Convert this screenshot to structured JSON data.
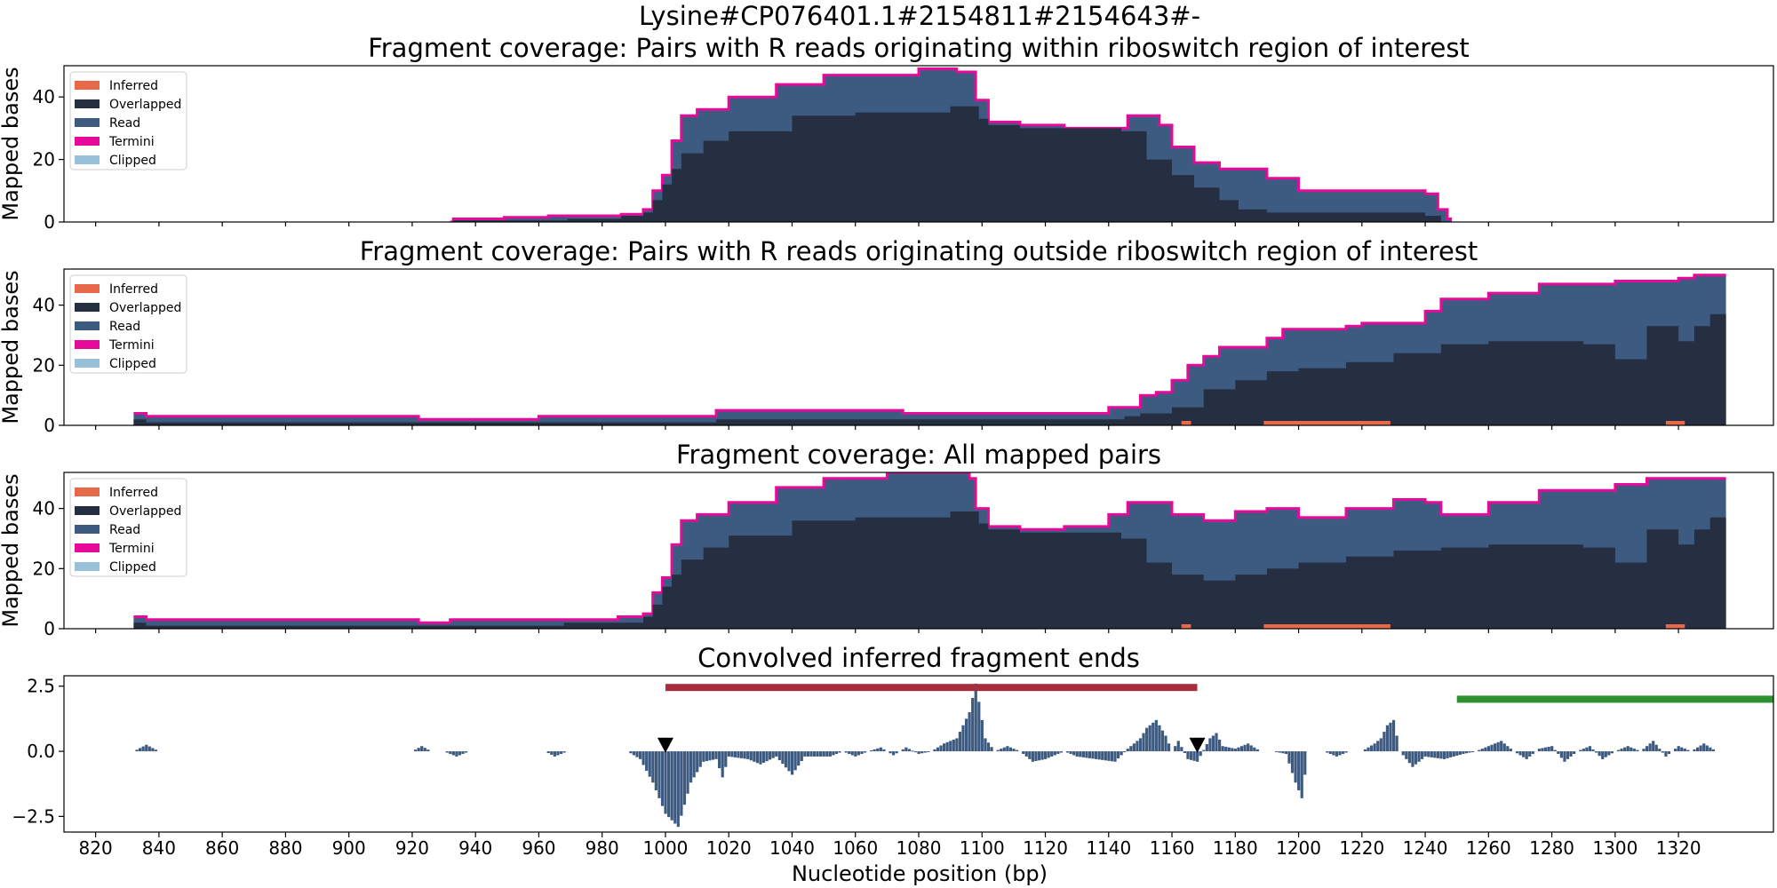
{
  "figure": {
    "suptitle": "Lysine#CP076401.1#2154811#2154643#-",
    "xlabel": "Nucleotide position (bp)"
  },
  "legend": [
    {
      "label": "Inferred",
      "color": "#e8694a"
    },
    {
      "label": "Overlapped",
      "color": "#252f41"
    },
    {
      "label": "Read",
      "color": "#3d5a80"
    },
    {
      "label": "Termini",
      "color": "#e6099a"
    },
    {
      "label": "Clipped",
      "color": "#98c1d9"
    }
  ],
  "colors": {
    "inferred": "#e8694a",
    "overlapped": "#252f41",
    "read": "#3d5a80",
    "termini": "#e6099a",
    "clipped": "#98c1d9",
    "red_bar": "#a72e3d",
    "green_bar": "#2f912f",
    "marker": "#000000"
  },
  "chart_data": [
    {
      "type": "area",
      "title": "Fragment coverage: Pairs with R reads originating within riboswitch region of interest",
      "ylabel": "Mapped bases",
      "xlim": [
        810,
        1350
      ],
      "ylim": [
        0,
        50
      ],
      "yticks": [
        0,
        20,
        40
      ],
      "legend_position": "upper-left",
      "total": [
        [
          932,
          0
        ],
        [
          933,
          1
        ],
        [
          948,
          1
        ],
        [
          949,
          1.5
        ],
        [
          962,
          1.5
        ],
        [
          963,
          2
        ],
        [
          985,
          2
        ],
        [
          986,
          2.5
        ],
        [
          993,
          4
        ],
        [
          996,
          10
        ],
        [
          999,
          15
        ],
        [
          1002,
          26
        ],
        [
          1005,
          34
        ],
        [
          1010,
          36
        ],
        [
          1020,
          40
        ],
        [
          1035,
          44
        ],
        [
          1050,
          47
        ],
        [
          1080,
          49
        ],
        [
          1092,
          48
        ],
        [
          1096,
          48
        ],
        [
          1098,
          39
        ],
        [
          1102,
          32
        ],
        [
          1112,
          31
        ],
        [
          1126,
          30
        ],
        [
          1140,
          30
        ],
        [
          1146,
          34
        ],
        [
          1156,
          31
        ],
        [
          1160,
          24
        ],
        [
          1167,
          19
        ],
        [
          1175,
          17
        ],
        [
          1190,
          14
        ],
        [
          1200,
          10
        ],
        [
          1230,
          10
        ],
        [
          1240,
          9
        ],
        [
          1244,
          4
        ],
        [
          1247,
          1
        ],
        [
          1248,
          0
        ]
      ],
      "overlapped": [
        [
          932,
          0
        ],
        [
          933,
          0.5
        ],
        [
          968,
          0.5
        ],
        [
          969,
          1
        ],
        [
          985,
          1
        ],
        [
          986,
          2
        ],
        [
          993,
          3
        ],
        [
          996,
          7
        ],
        [
          999,
          12
        ],
        [
          1002,
          17
        ],
        [
          1005,
          22
        ],
        [
          1012,
          26
        ],
        [
          1020,
          29
        ],
        [
          1040,
          34
        ],
        [
          1060,
          35
        ],
        [
          1080,
          35
        ],
        [
          1090,
          37
        ],
        [
          1096,
          37
        ],
        [
          1099,
          33
        ],
        [
          1102,
          31
        ],
        [
          1112,
          30
        ],
        [
          1126,
          30
        ],
        [
          1140,
          30
        ],
        [
          1144,
          29
        ],
        [
          1152,
          20
        ],
        [
          1160,
          15
        ],
        [
          1167,
          11
        ],
        [
          1175,
          7
        ],
        [
          1181,
          4
        ],
        [
          1190,
          3
        ],
        [
          1200,
          3
        ],
        [
          1228,
          3
        ],
        [
          1240,
          2
        ],
        [
          1245,
          0
        ]
      ],
      "inferred": []
    },
    {
      "type": "area",
      "title": "Fragment coverage: Pairs with R reads originating outside riboswitch region of interest",
      "ylabel": "Mapped bases",
      "xlim": [
        810,
        1350
      ],
      "ylim": [
        0,
        52
      ],
      "yticks": [
        0,
        20,
        40
      ],
      "legend_position": "upper-left",
      "total": [
        [
          832,
          4
        ],
        [
          836,
          3
        ],
        [
          880,
          3
        ],
        [
          922,
          2
        ],
        [
          960,
          3
        ],
        [
          985,
          3
        ],
        [
          1000,
          3
        ],
        [
          1016,
          5
        ],
        [
          1035,
          5
        ],
        [
          1075,
          4
        ],
        [
          1130,
          4
        ],
        [
          1140,
          6
        ],
        [
          1150,
          10
        ],
        [
          1155,
          11
        ],
        [
          1160,
          15
        ],
        [
          1165,
          20
        ],
        [
          1170,
          23
        ],
        [
          1175,
          26
        ],
        [
          1190,
          29
        ],
        [
          1195,
          32
        ],
        [
          1215,
          33
        ],
        [
          1220,
          34
        ],
        [
          1240,
          38
        ],
        [
          1245,
          42
        ],
        [
          1260,
          44
        ],
        [
          1276,
          47
        ],
        [
          1300,
          48
        ],
        [
          1310,
          48
        ],
        [
          1320,
          49
        ],
        [
          1325,
          50
        ],
        [
          1335,
          50
        ]
      ],
      "overlapped": [
        [
          832,
          2
        ],
        [
          836,
          1
        ],
        [
          1000,
          1
        ],
        [
          1016,
          2
        ],
        [
          1035,
          2
        ],
        [
          1075,
          2
        ],
        [
          1130,
          2
        ],
        [
          1145,
          3
        ],
        [
          1150,
          4
        ],
        [
          1160,
          6
        ],
        [
          1170,
          12
        ],
        [
          1180,
          15
        ],
        [
          1190,
          18
        ],
        [
          1200,
          19
        ],
        [
          1215,
          21
        ],
        [
          1230,
          24
        ],
        [
          1245,
          27
        ],
        [
          1260,
          28
        ],
        [
          1280,
          28
        ],
        [
          1290,
          27
        ],
        [
          1300,
          22
        ],
        [
          1310,
          33
        ],
        [
          1320,
          28
        ],
        [
          1325,
          33
        ],
        [
          1330,
          37
        ],
        [
          1335,
          37
        ]
      ],
      "inferred": [
        [
          1163,
          1166
        ],
        [
          1189,
          1229
        ],
        [
          1316,
          1322
        ]
      ]
    },
    {
      "type": "area",
      "title": "Fragment coverage: All mapped pairs",
      "ylabel": "Mapped bases",
      "xlim": [
        810,
        1350
      ],
      "ylim": [
        0,
        52
      ],
      "yticks": [
        0,
        20,
        40
      ],
      "legend_position": "upper-left",
      "total": [
        [
          832,
          4
        ],
        [
          836,
          3
        ],
        [
          880,
          3
        ],
        [
          922,
          2
        ],
        [
          932,
          3
        ],
        [
          962,
          3
        ],
        [
          985,
          4
        ],
        [
          993,
          5
        ],
        [
          996,
          12
        ],
        [
          999,
          17
        ],
        [
          1002,
          28
        ],
        [
          1005,
          36
        ],
        [
          1010,
          38
        ],
        [
          1020,
          42
        ],
        [
          1035,
          47
        ],
        [
          1050,
          50
        ],
        [
          1070,
          52
        ],
        [
          1090,
          52
        ],
        [
          1096,
          50
        ],
        [
          1098,
          40
        ],
        [
          1102,
          34
        ],
        [
          1112,
          33
        ],
        [
          1126,
          34
        ],
        [
          1140,
          38
        ],
        [
          1146,
          42
        ],
        [
          1156,
          42
        ],
        [
          1160,
          38
        ],
        [
          1170,
          36
        ],
        [
          1180,
          39
        ],
        [
          1190,
          40
        ],
        [
          1200,
          37
        ],
        [
          1215,
          40
        ],
        [
          1230,
          43
        ],
        [
          1240,
          42
        ],
        [
          1245,
          38
        ],
        [
          1260,
          42
        ],
        [
          1276,
          46
        ],
        [
          1300,
          48
        ],
        [
          1310,
          50
        ],
        [
          1320,
          50
        ],
        [
          1335,
          50
        ]
      ],
      "overlapped": [
        [
          832,
          2
        ],
        [
          836,
          1
        ],
        [
          968,
          2
        ],
        [
          985,
          2
        ],
        [
          993,
          4
        ],
        [
          996,
          8
        ],
        [
          999,
          14
        ],
        [
          1002,
          18
        ],
        [
          1005,
          23
        ],
        [
          1012,
          27
        ],
        [
          1020,
          31
        ],
        [
          1040,
          36
        ],
        [
          1060,
          37
        ],
        [
          1080,
          37
        ],
        [
          1090,
          39
        ],
        [
          1096,
          39
        ],
        [
          1099,
          35
        ],
        [
          1102,
          33
        ],
        [
          1112,
          32
        ],
        [
          1126,
          32
        ],
        [
          1140,
          32
        ],
        [
          1144,
          30
        ],
        [
          1152,
          22
        ],
        [
          1160,
          18
        ],
        [
          1170,
          16
        ],
        [
          1180,
          18
        ],
        [
          1190,
          20
        ],
        [
          1200,
          22
        ],
        [
          1215,
          24
        ],
        [
          1230,
          26
        ],
        [
          1245,
          27
        ],
        [
          1260,
          28
        ],
        [
          1280,
          28
        ],
        [
          1290,
          27
        ],
        [
          1300,
          22
        ],
        [
          1310,
          33
        ],
        [
          1320,
          28
        ],
        [
          1325,
          33
        ],
        [
          1330,
          37
        ],
        [
          1335,
          37
        ]
      ],
      "inferred": [
        [
          1163,
          1166
        ],
        [
          1189,
          1229
        ],
        [
          1316,
          1322
        ]
      ]
    },
    {
      "type": "bar",
      "title": "Convolved inferred fragment ends",
      "xlabel": "Nucleotide position (bp)",
      "xlim": [
        810,
        1350
      ],
      "ylim": [
        -3.1,
        2.9
      ],
      "yticks": [
        -2.5,
        0.0,
        2.5
      ],
      "xticks": [
        820,
        840,
        860,
        880,
        900,
        920,
        940,
        960,
        980,
        1000,
        1020,
        1040,
        1060,
        1080,
        1100,
        1120,
        1140,
        1160,
        1180,
        1200,
        1220,
        1240,
        1260,
        1280,
        1300,
        1320
      ],
      "signal": [
        [
          832,
          0
        ],
        [
          836,
          0.25
        ],
        [
          840,
          0
        ],
        [
          920,
          0
        ],
        [
          923,
          0.2
        ],
        [
          926,
          0
        ],
        [
          930,
          0
        ],
        [
          934,
          -0.2
        ],
        [
          938,
          0
        ],
        [
          962,
          0
        ],
        [
          965,
          -0.2
        ],
        [
          969,
          0
        ],
        [
          988,
          0
        ],
        [
          992,
          -0.3
        ],
        [
          996,
          -1.2
        ],
        [
          1000,
          -2.4
        ],
        [
          1004,
          -2.9
        ],
        [
          1008,
          -1.2
        ],
        [
          1012,
          -0.4
        ],
        [
          1016,
          -0.3
        ],
        [
          1018,
          -1.0
        ],
        [
          1020,
          -0.2
        ],
        [
          1026,
          -0.3
        ],
        [
          1030,
          -0.5
        ],
        [
          1035,
          -0.2
        ],
        [
          1040,
          -0.9
        ],
        [
          1044,
          -0.2
        ],
        [
          1048,
          -0.2
        ],
        [
          1052,
          -0.2
        ],
        [
          1056,
          0
        ],
        [
          1060,
          -0.2
        ],
        [
          1064,
          0
        ],
        [
          1068,
          0.15
        ],
        [
          1072,
          -0.15
        ],
        [
          1076,
          0.15
        ],
        [
          1080,
          -0.1
        ],
        [
          1084,
          0
        ],
        [
          1088,
          0.3
        ],
        [
          1092,
          0.5
        ],
        [
          1096,
          1.5
        ],
        [
          1098,
          2.6
        ],
        [
          1101,
          0.5
        ],
        [
          1104,
          0
        ],
        [
          1108,
          0.2
        ],
        [
          1112,
          0
        ],
        [
          1116,
          -0.4
        ],
        [
          1120,
          -0.3
        ],
        [
          1126,
          0
        ],
        [
          1130,
          -0.2
        ],
        [
          1136,
          -0.3
        ],
        [
          1142,
          -0.4
        ],
        [
          1146,
          0.1
        ],
        [
          1150,
          0.5
        ],
        [
          1152,
          0.9
        ],
        [
          1155,
          1.2
        ],
        [
          1158,
          0.6
        ],
        [
          1160,
          0
        ],
        [
          1162,
          0.4
        ],
        [
          1165,
          -0.3
        ],
        [
          1168,
          -0.4
        ],
        [
          1172,
          0.5
        ],
        [
          1174,
          0.7
        ],
        [
          1176,
          0.2
        ],
        [
          1180,
          0.1
        ],
        [
          1184,
          0.3
        ],
        [
          1188,
          0
        ],
        [
          1192,
          0
        ],
        [
          1196,
          -0.1
        ],
        [
          1199,
          -1.2
        ],
        [
          1201,
          -1.8
        ],
        [
          1203,
          0
        ],
        [
          1208,
          0
        ],
        [
          1212,
          -0.2
        ],
        [
          1216,
          0
        ],
        [
          1220,
          0
        ],
        [
          1224,
          0.3
        ],
        [
          1226,
          0.5
        ],
        [
          1228,
          1.0
        ],
        [
          1230,
          1.2
        ],
        [
          1232,
          0
        ],
        [
          1236,
          -0.6
        ],
        [
          1240,
          -0.2
        ],
        [
          1246,
          -0.3
        ],
        [
          1252,
          -0.1
        ],
        [
          1256,
          0
        ],
        [
          1260,
          0.2
        ],
        [
          1264,
          0.4
        ],
        [
          1268,
          0
        ],
        [
          1272,
          -0.3
        ],
        [
          1276,
          0.1
        ],
        [
          1280,
          0.2
        ],
        [
          1284,
          -0.4
        ],
        [
          1288,
          0
        ],
        [
          1292,
          0.2
        ],
        [
          1296,
          -0.3
        ],
        [
          1300,
          0
        ],
        [
          1304,
          0.2
        ],
        [
          1308,
          0
        ],
        [
          1312,
          0.4
        ],
        [
          1316,
          -0.2
        ],
        [
          1320,
          0.2
        ],
        [
          1324,
          0
        ],
        [
          1328,
          0.3
        ],
        [
          1332,
          0
        ]
      ],
      "red_bar": {
        "x_start": 1000,
        "x_end": 1168,
        "y": 2.45
      },
      "green_bar": {
        "x_start": 1250,
        "x_end": 1350,
        "y": 2.0
      },
      "markers": [
        {
          "x": 1000,
          "y": 0.25
        },
        {
          "x": 1168,
          "y": 0.25
        }
      ]
    }
  ]
}
